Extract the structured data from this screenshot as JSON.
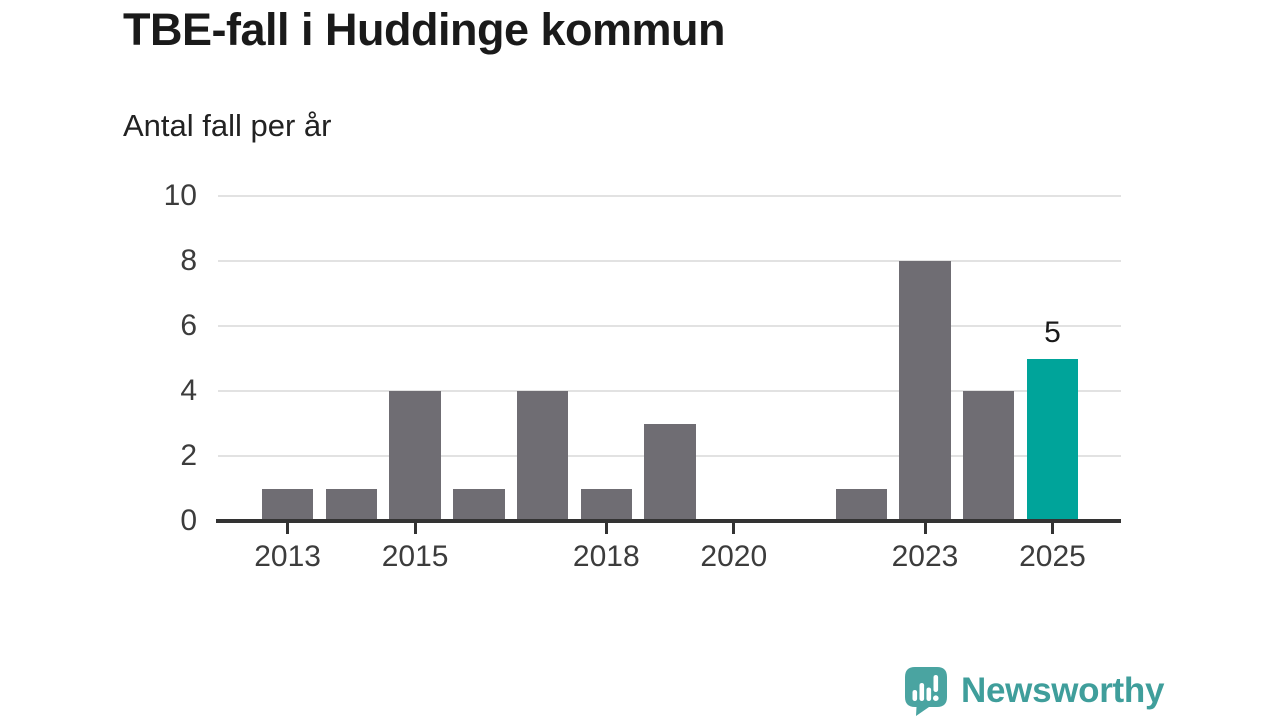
{
  "header": {
    "title": "TBE-fall i Huddinge kommun",
    "subtitle": "Antal fall per år"
  },
  "chart_data": {
    "type": "bar",
    "title": "TBE-fall i Huddinge kommun",
    "subtitle": "Antal fall per år",
    "ylabel": "Antal fall per år",
    "categories": [
      2013,
      2014,
      2015,
      2016,
      2017,
      2018,
      2019,
      2020,
      2021,
      2022,
      2023,
      2024,
      2025
    ],
    "values": [
      1,
      1,
      4,
      1,
      4,
      1,
      3,
      0,
      0,
      1,
      8,
      4,
      5
    ],
    "ylim": [
      0,
      10
    ],
    "yticks": [
      0,
      2,
      4,
      6,
      8,
      10
    ],
    "xtick_labels": [
      "2013",
      "2015",
      "2018",
      "2020",
      "2023",
      "2025"
    ],
    "grid": "horizontal",
    "legend": "none",
    "bar_color": "#6f6d73",
    "highlight_color": "#00a49a",
    "highlight_category": 2025,
    "data_labels": [
      {
        "category": 2025,
        "label": "5"
      }
    ]
  },
  "attribution": {
    "brand": "Newsworthy",
    "brand_color": "#3f9e9b",
    "icon": "newsworthy-speech-bubble-chart-icon",
    "icon_color": "#4aa4a1"
  }
}
